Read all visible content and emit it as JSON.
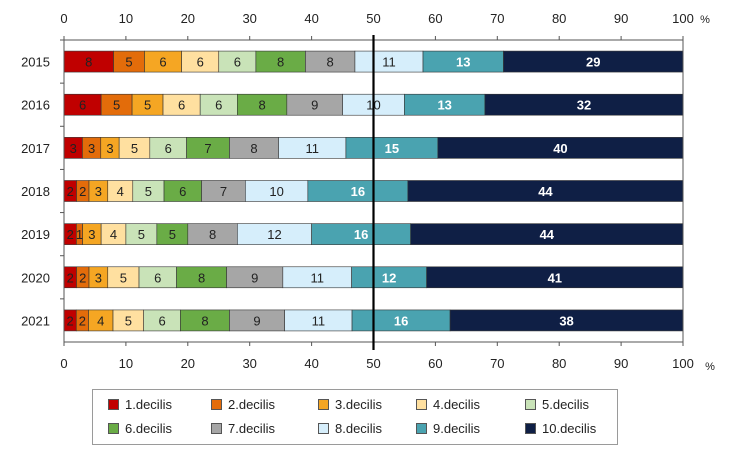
{
  "chart_data": {
    "type": "bar",
    "orientation": "horizontal",
    "stacked": true,
    "categories": [
      "2015",
      "2016",
      "2017",
      "2018",
      "2019",
      "2020",
      "2021"
    ],
    "series": [
      {
        "name": "1.decilis",
        "color": "#c00000",
        "values": [
          8,
          6,
          3,
          2,
          2,
          2,
          2
        ]
      },
      {
        "name": "2.decilis",
        "color": "#e36c0a",
        "values": [
          5,
          5,
          3,
          2,
          1,
          2,
          2
        ]
      },
      {
        "name": "3.decilis",
        "color": "#f5a623",
        "values": [
          6,
          5,
          3,
          3,
          3,
          3,
          4
        ]
      },
      {
        "name": "4.decilis",
        "color": "#ffe0a0",
        "values": [
          6,
          6,
          5,
          4,
          4,
          5,
          5
        ]
      },
      {
        "name": "5.decilis",
        "color": "#c9e3b8",
        "values": [
          6,
          6,
          6,
          5,
          5,
          6,
          6
        ]
      },
      {
        "name": "6.decilis",
        "color": "#6aac46",
        "values": [
          8,
          8,
          7,
          6,
          5,
          8,
          8
        ]
      },
      {
        "name": "7.decilis",
        "color": "#a6a6a6",
        "values": [
          8,
          9,
          8,
          7,
          8,
          9,
          9
        ]
      },
      {
        "name": "8.decilis",
        "color": "#d6eefb",
        "values": [
          11,
          10,
          11,
          10,
          12,
          11,
          11
        ]
      },
      {
        "name": "9.decilis",
        "color": "#4aa3b0",
        "values": [
          13,
          13,
          15,
          16,
          16,
          12,
          16
        ]
      },
      {
        "name": "10.decilis",
        "color": "#0f1f45",
        "values": [
          29,
          32,
          40,
          44,
          44,
          41,
          38
        ]
      }
    ],
    "xlim": [
      0,
      100
    ],
    "xticks": [
      "0",
      "10",
      "20",
      "30",
      "40",
      "50",
      "60",
      "70",
      "80",
      "90",
      "100"
    ],
    "unit": "%",
    "reference_line": 50,
    "legend_position": "bottom",
    "grid": false
  }
}
